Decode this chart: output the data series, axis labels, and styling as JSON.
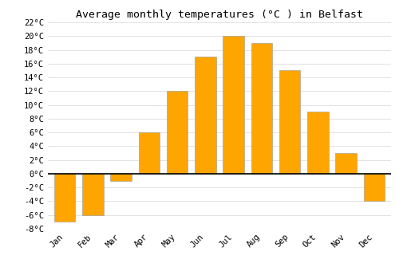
{
  "title": "Average monthly temperatures (°C ) in Belfast",
  "months": [
    "Jan",
    "Feb",
    "Mar",
    "Apr",
    "May",
    "Jun",
    "Jul",
    "Aug",
    "Sep",
    "Oct",
    "Nov",
    "Dec"
  ],
  "values": [
    -7,
    -6,
    -1,
    6,
    12,
    17,
    20,
    19,
    15,
    9,
    3,
    -4
  ],
  "bar_color": "#FFA500",
  "bar_color_gradient_top": "#FFB833",
  "bar_edge_color": "#999999",
  "ylim": [
    -8,
    22
  ],
  "yticks": [
    -8,
    -6,
    -4,
    -2,
    0,
    2,
    4,
    6,
    8,
    10,
    12,
    14,
    16,
    18,
    20,
    22
  ],
  "background_color": "#ffffff",
  "grid_color": "#dddddd",
  "zero_line_color": "#000000",
  "title_fontsize": 9.5,
  "tick_fontsize": 7.5,
  "bar_width": 0.75
}
